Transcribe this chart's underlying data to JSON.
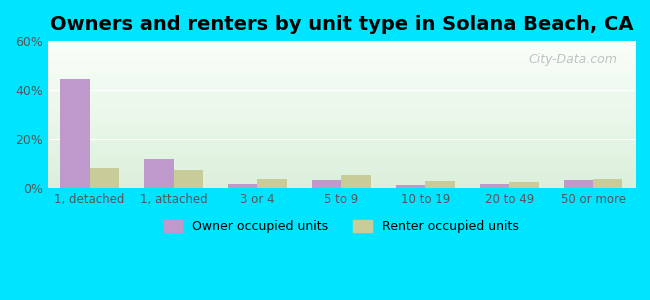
{
  "title": "Owners and renters by unit type in Solana Beach, CA",
  "categories": [
    "1, detached",
    "1, attached",
    "3 or 4",
    "5 to 9",
    "10 to 19",
    "20 to 49",
    "50 or more"
  ],
  "owner_values": [
    44.5,
    12.0,
    2.0,
    3.5,
    1.5,
    2.0,
    3.5
  ],
  "renter_values": [
    8.5,
    7.5,
    4.0,
    5.5,
    3.0,
    2.5,
    4.0
  ],
  "owner_color": "#bf99cc",
  "renter_color": "#c8cc99",
  "background_outer": "#00e5ff",
  "ylim": [
    0,
    60
  ],
  "yticks": [
    0,
    20,
    40,
    60
  ],
  "ytick_labels": [
    "0%",
    "20%",
    "40%",
    "60%"
  ],
  "bar_width": 0.35,
  "legend_owner": "Owner occupied units",
  "legend_renter": "Renter occupied units",
  "title_fontsize": 14,
  "watermark": "City-Data.com"
}
